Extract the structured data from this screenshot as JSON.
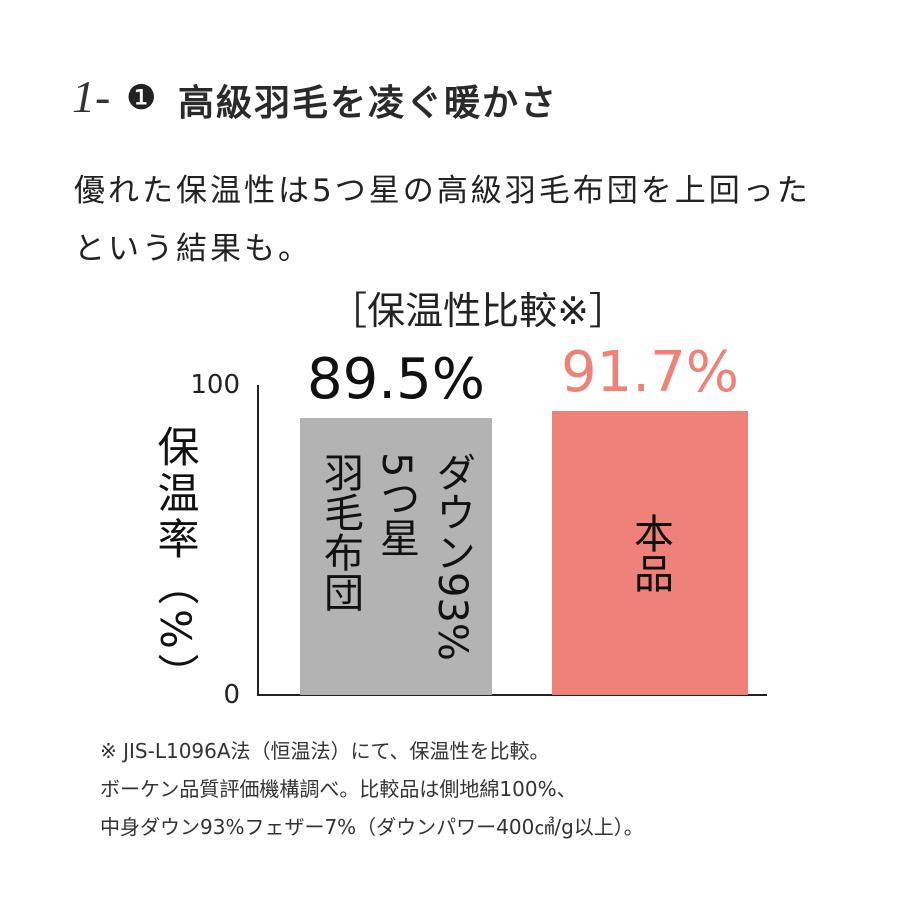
{
  "heading": {
    "number": "1-",
    "badge": "❶",
    "title": "高級羽毛を凌ぐ暖かさ"
  },
  "lead": "優れた保温性は5つ星の高級羽毛布団を上回ったという結果も。",
  "chart_data": {
    "type": "bar",
    "title": "［保温性比較※］",
    "y_label": "保温率（%）",
    "categories": [
      "ダウン93%\n5つ星\n羽毛布団",
      "本品"
    ],
    "values": [
      89.5,
      91.7
    ],
    "value_labels": [
      "89.5%",
      "91.7%"
    ],
    "colors": [
      "#b3b3b3",
      "#ee8178"
    ],
    "label_colors": [
      "#111111",
      "#ee8178"
    ],
    "ylim": [
      0,
      100
    ],
    "yticks": [
      0,
      100
    ],
    "grid": false
  },
  "notes": [
    "※ JIS-L1096A法（恒温法）にて、保温性を比較。",
    "ボーケン品質評価機構調べ。比較品は側地綿100%、",
    "中身ダウン93%フェザー7%（ダウンパワー400㎤/g以上）。"
  ]
}
